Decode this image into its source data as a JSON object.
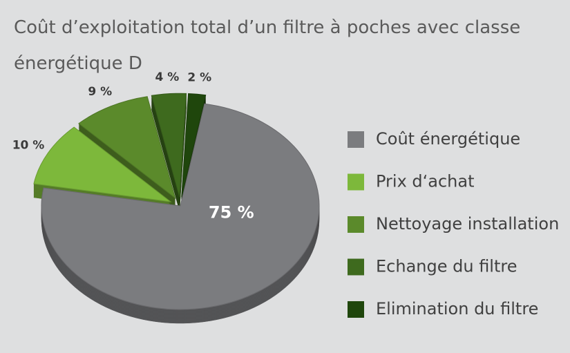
{
  "chart_data": {
    "type": "pie",
    "title": "Coût d’exploitation total d’un filtre à poches avec classe énergétique D",
    "categories": [
      "Coût énergétique",
      "Prix d‘achat",
      "Nettoyage installation",
      "Echange du filtre",
      "Elimination du filtre"
    ],
    "values": [
      75,
      10,
      9,
      4,
      2
    ],
    "value_labels": [
      "75 %",
      "10 %",
      "9 %",
      "4 %",
      "2 %"
    ],
    "colors": [
      "#7b7c7f",
      "#7db83b",
      "#5b8a2b",
      "#3e6a1e",
      "#1f460c"
    ],
    "legend": "right"
  }
}
